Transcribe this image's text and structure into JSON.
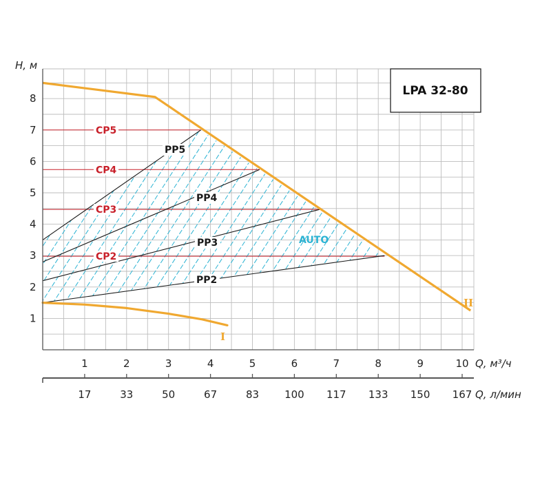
{
  "chart_data": {
    "type": "line",
    "title": "LPA 32-80",
    "xlabel": "Q, м³/ч",
    "xlabel_secondary": "Q, л/мин",
    "ylabel": "H, м",
    "xlim": [
      0,
      10.25
    ],
    "ylim": [
      0,
      9
    ],
    "x_ticks": [
      1,
      2,
      3,
      4,
      5,
      6,
      7,
      8,
      9,
      10
    ],
    "x_ticks_secondary": [
      {
        "x": 1,
        "label": "17"
      },
      {
        "x": 2,
        "label": "33"
      },
      {
        "x": 3,
        "label": "50"
      },
      {
        "x": 4,
        "label": "67"
      },
      {
        "x": 5,
        "label": "83"
      },
      {
        "x": 6,
        "label": "100"
      },
      {
        "x": 7,
        "label": "117"
      },
      {
        "x": 8,
        "label": "133"
      },
      {
        "x": 9,
        "label": "150"
      },
      {
        "x": 10,
        "label": "167"
      }
    ],
    "y_ticks": [
      1,
      2,
      3,
      4,
      5,
      6,
      7,
      8
    ],
    "grid": true,
    "max_curve": {
      "name": "II",
      "color": "#f0a830",
      "points": [
        [
          0,
          8.5
        ],
        [
          2.68,
          8.05
        ],
        [
          10.2,
          1.25
        ]
      ]
    },
    "min_curve": {
      "name": "I",
      "color": "#f0a830",
      "points": [
        [
          0,
          1.5
        ],
        [
          1.0,
          1.44
        ],
        [
          2.0,
          1.33
        ],
        [
          3.0,
          1.15
        ],
        [
          3.8,
          0.97
        ],
        [
          4.4,
          0.78
        ]
      ]
    },
    "constant_pressure": [
      {
        "name": "CP5",
        "y": 7.0,
        "x_end": 3.77
      },
      {
        "name": "CP4",
        "y": 5.74,
        "x_end": 5.17
      },
      {
        "name": "CP3",
        "y": 4.47,
        "x_end": 6.6
      },
      {
        "name": "CP2",
        "y": 2.98,
        "x_end": 8.15
      }
    ],
    "proportional_pressure": [
      {
        "name": "PP5",
        "x": [
          0,
          3.77
        ],
        "y": [
          3.5,
          7.0
        ]
      },
      {
        "name": "PP4",
        "x": [
          0,
          5.17
        ],
        "y": [
          2.8,
          5.74
        ]
      },
      {
        "name": "PP3",
        "x": [
          0,
          6.6
        ],
        "y": [
          2.2,
          4.47
        ]
      },
      {
        "name": "PP2",
        "x": [
          0,
          8.15
        ],
        "y": [
          1.5,
          3.0
        ]
      }
    ],
    "auto_region": {
      "name": "AUTO",
      "color": "#2bb3d3",
      "polygon": [
        [
          0,
          3.5
        ],
        [
          3.77,
          7.0
        ],
        [
          8.15,
          3.0
        ],
        [
          0,
          1.5
        ]
      ]
    },
    "colors": {
      "max_min_curves": "#f0a830",
      "cp_lines": "#c8202a",
      "pp_lines": "#1a1a1a",
      "auto_hatch": "#2bb3d3",
      "grid": "#bdbdbd"
    }
  }
}
